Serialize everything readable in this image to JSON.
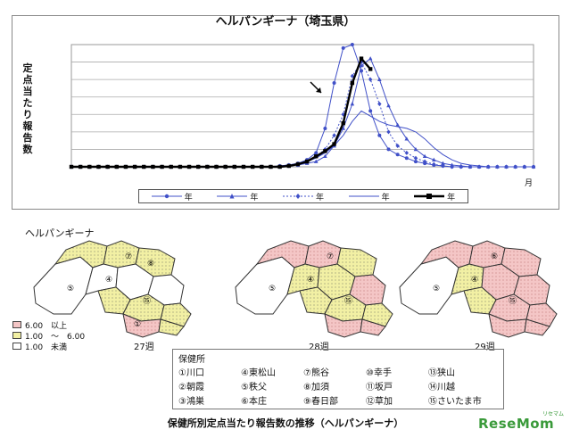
{
  "chart_data": {
    "type": "line",
    "title": "ヘルパンギーナ（埼玉県）",
    "ylabel": "定点当たり報告数",
    "x_unit": "月",
    "ylim": [
      0,
      7
    ],
    "n_weeks": 52,
    "grid": true,
    "legend_position": "bottom",
    "legend_label": "年",
    "series": [
      {
        "marker": "circle",
        "dash": "solid",
        "values": [
          0,
          0,
          0,
          0,
          0,
          0,
          0,
          0,
          0,
          0,
          0,
          0,
          0,
          0,
          0,
          0,
          0,
          0,
          0,
          0,
          0,
          0,
          0,
          0.05,
          0.1,
          0.2,
          0.4,
          0.8,
          2.2,
          4.8,
          6.8,
          7.0,
          5.5,
          3.2,
          1.8,
          1.0,
          0.7,
          0.5,
          0.3,
          0.2,
          0.1,
          0.05,
          0,
          0,
          0,
          0,
          0,
          0,
          0,
          0,
          0,
          0
        ]
      },
      {
        "marker": "triangle",
        "dash": "solid",
        "values": [
          0,
          0,
          0,
          0,
          0,
          0,
          0,
          0,
          0,
          0,
          0,
          0,
          0,
          0,
          0,
          0,
          0,
          0,
          0,
          0,
          0,
          0,
          0,
          0.05,
          0.1,
          0.1,
          0.2,
          0.3,
          0.6,
          1.2,
          2.2,
          3.6,
          5.8,
          6.2,
          5.0,
          3.5,
          2.4,
          1.6,
          1.0,
          0.6,
          0.4,
          0.2,
          0.1,
          0.05,
          0,
          0,
          0,
          0,
          0,
          0,
          0,
          0
        ]
      },
      {
        "marker": "diamond",
        "dash": "dotted",
        "values": [
          0,
          0,
          0,
          0,
          0,
          0,
          0,
          0,
          0,
          0,
          0,
          0,
          0,
          0,
          0,
          0,
          0,
          0,
          0,
          0,
          0,
          0,
          0,
          0,
          0.05,
          0.1,
          0.3,
          0.6,
          1.0,
          1.8,
          3.0,
          5.2,
          6.0,
          5.0,
          3.6,
          2.0,
          1.2,
          0.8,
          0.5,
          0.3,
          0.15,
          0.05,
          0,
          0,
          0,
          0,
          0,
          0,
          0,
          0,
          0,
          0
        ]
      },
      {
        "marker": "none",
        "dash": "solid",
        "values": [
          0,
          0,
          0,
          0,
          0,
          0,
          0,
          0,
          0,
          0,
          0,
          0,
          0,
          0,
          0,
          0,
          0,
          0,
          0,
          0,
          0,
          0,
          0,
          0.05,
          0.1,
          0.2,
          0.3,
          0.5,
          0.8,
          1.2,
          1.8,
          2.6,
          3.2,
          2.9,
          2.6,
          2.4,
          2.3,
          2.2,
          2.0,
          1.6,
          1.1,
          0.7,
          0.4,
          0.2,
          0.1,
          0.05,
          0,
          0,
          0,
          0,
          0,
          0
        ]
      },
      {
        "marker": "square",
        "dash": "solid",
        "bold": true,
        "values": [
          0,
          0,
          0,
          0,
          0,
          0,
          0,
          0,
          0,
          0,
          0,
          0,
          0,
          0,
          0,
          0,
          0,
          0,
          0,
          0,
          0,
          0,
          0,
          0,
          0.05,
          0.15,
          0.3,
          0.6,
          0.9,
          1.3,
          2.5,
          4.8,
          6.2,
          5.6
        ]
      }
    ],
    "colors": {
      "series": [
        "#4050c8",
        "#4050c8",
        "#4050c8",
        "#4050c8",
        "#000000"
      ]
    }
  },
  "maps": {
    "title": "ヘルパンギーナ",
    "weeks": [
      "27週",
      "28週",
      "29週"
    ],
    "legend": [
      {
        "label": "6.00　以上",
        "color": "#f4c6c6"
      },
      {
        "label": "1.00　～　6.00",
        "color": "#f2f0a4"
      },
      {
        "label": "1.00　未満",
        "color": "#ffffff"
      }
    ],
    "offices_heading": "保健所",
    "offices": [
      "①川口",
      "④東松山",
      "⑦熊谷",
      "⑩幸手",
      "⑬狭山",
      "②朝霞",
      "⑤秩父",
      "⑧加須",
      "⑪坂戸",
      "⑭川越",
      "③鴻巣",
      "⑥本庄",
      "⑨春日部",
      "⑫草加",
      "⑮さいたま市"
    ]
  },
  "caption": "保健所別定点当たり報告数の推移（ヘルパンギーナ）",
  "brand": {
    "name": "ReseMom",
    "sub": "リセマム"
  }
}
